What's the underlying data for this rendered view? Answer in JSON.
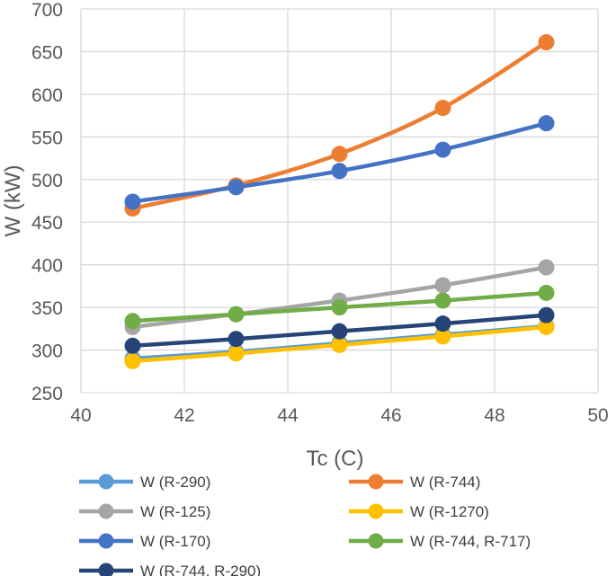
{
  "chart_data": {
    "type": "line",
    "title": "",
    "xlabel": "Tc (C)",
    "ylabel": "W (kW)",
    "xlim": [
      40,
      50
    ],
    "ylim": [
      250,
      700
    ],
    "xticks": [
      "40",
      "42",
      "44",
      "46",
      "48",
      "50"
    ],
    "yticks": [
      "250",
      "300",
      "350",
      "400",
      "450",
      "500",
      "550",
      "600",
      "650",
      "700"
    ],
    "grid": true,
    "legend_position": "bottom",
    "x": [
      41,
      43,
      45,
      47,
      49
    ],
    "series": [
      {
        "name": "W (R-290)",
        "color": "#5B9BD5",
        "values": [
          290,
          298,
          308,
          318,
          328
        ]
      },
      {
        "name": "W (R-744)",
        "color": "#ED7D31",
        "values": [
          466,
          493,
          530,
          584,
          661
        ]
      },
      {
        "name": "W (R-125)",
        "color": "#A5A5A5",
        "values": [
          327,
          342,
          358,
          376,
          397
        ]
      },
      {
        "name": "W (R-1270)",
        "color": "#FFC000",
        "values": [
          287,
          296,
          306,
          316,
          327
        ]
      },
      {
        "name": "W (R-170)",
        "color": "#4472C4",
        "values": [
          474,
          491,
          510,
          535,
          566
        ]
      },
      {
        "name": "W (R-744, R-717)",
        "color": "#70AD47",
        "values": [
          334,
          342,
          350,
          358,
          367
        ]
      },
      {
        "name": "W (R-744, R-290)",
        "color": "#264478",
        "values": [
          305,
          313,
          322,
          331,
          341
        ]
      }
    ]
  }
}
